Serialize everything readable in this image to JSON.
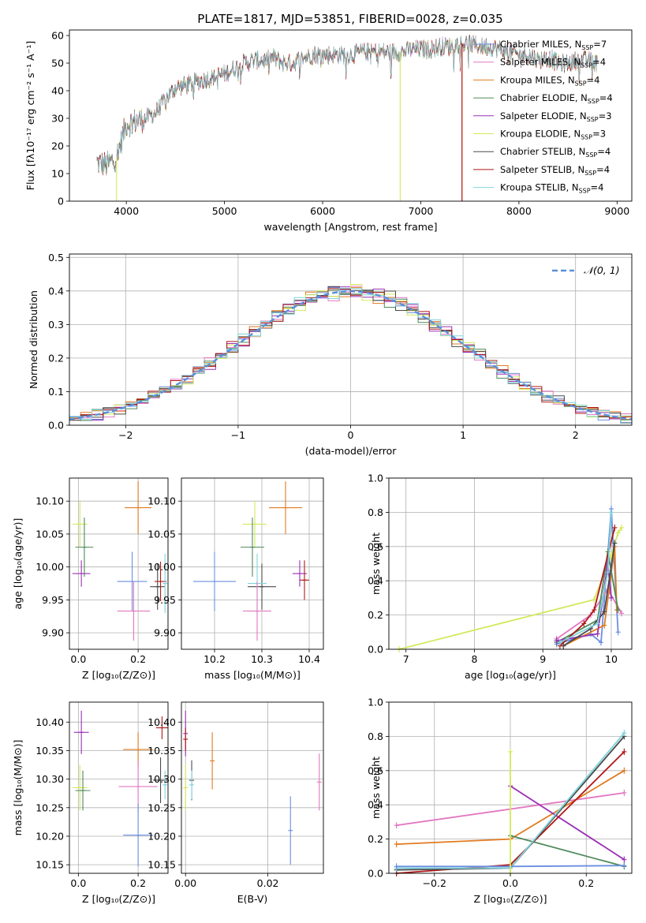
{
  "figure": {
    "title": "PLATE=1817, MJD=53851, FIBERID=0028, z=0.035"
  },
  "colors": {
    "Chabrier MILES": "#6b8fe0",
    "Salpeter MILES": "#e377c2",
    "Kroupa MILES": "#e07b20",
    "Chabrier ELODIE": "#4f8a5b",
    "Salpeter ELODIE": "#9b30b5",
    "Kroupa ELODIE": "#d4e85a",
    "Chabrier STELIB": "#4a4a4a",
    "Salpeter STELIB": "#b01818",
    "Kroupa STELIB": "#7fd4dc",
    "normal": "#5b8fd9",
    "grid": "#b0b0b0"
  },
  "chart_data": [
    {
      "id": "spectrum",
      "type": "line",
      "title": "PLATE=1817, MJD=53851, FIBERID=0028, z=0.035",
      "xlabel": "wavelength [Angstrom, rest frame]",
      "ylabel": "Flux [fλ10⁻¹⁷ erg cm⁻² s⁻¹ A⁻¹]",
      "xlim": [
        3420,
        9150
      ],
      "ylim": [
        0,
        62
      ],
      "xticks": [
        4000,
        5000,
        6000,
        7000,
        8000,
        9000
      ],
      "yticks": [
        0,
        10,
        20,
        30,
        40,
        50,
        60
      ],
      "grid": false,
      "legend_position": "top-right",
      "x": [
        3700,
        3800,
        3900,
        3950,
        4000,
        4100,
        4200,
        4300,
        4400,
        4500,
        4600,
        4700,
        4800,
        4900,
        5000,
        5100,
        5200,
        5300,
        5400,
        5500,
        5600,
        5700,
        5800,
        5900,
        6000,
        6100,
        6200,
        6300,
        6400,
        6500,
        6600,
        6700,
        6800,
        6900,
        7000,
        7100,
        7200,
        7300,
        7400,
        7500,
        7600,
        7700,
        7800,
        7900,
        8000,
        8100,
        8200,
        8300,
        8400,
        8500,
        8600,
        8700,
        8800
      ],
      "y": [
        14,
        13,
        16,
        22,
        28,
        29,
        30,
        32,
        37,
        41,
        42,
        43,
        44,
        45,
        46,
        48,
        50,
        51,
        51,
        52,
        50,
        50,
        52,
        53,
        53,
        53,
        53,
        53,
        54,
        54,
        54,
        54,
        54,
        55,
        55,
        55,
        56,
        56,
        57,
        57,
        56,
        56,
        55,
        54,
        53,
        53,
        51,
        52,
        50,
        50,
        51,
        51,
        50
      ],
      "dips": [
        {
          "series": "Kroupa ELODIE",
          "x": 3900,
          "y": 0
        },
        {
          "series": "Kroupa ELODIE",
          "x": 6790,
          "y": 0
        },
        {
          "series": "Kroupa MILES",
          "x": 7420,
          "y": 0
        },
        {
          "series": "Salpeter STELIB",
          "x": 7420,
          "y": 0
        }
      ],
      "series": [
        {
          "name": "Chabrier MILES",
          "label": "Chabrier MILES, N",
          "sub": "SSP",
          "count": "=7"
        },
        {
          "name": "Salpeter MILES",
          "label": "Salpeter MILES, N",
          "sub": "SSP",
          "count": "=4"
        },
        {
          "name": "Kroupa MILES",
          "label": "Kroupa MILES, N",
          "sub": "SSP",
          "count": "=4"
        },
        {
          "name": "Chabrier ELODIE",
          "label": "Chabrier ELODIE, N",
          "sub": "SSP",
          "count": "=4"
        },
        {
          "name": "Salpeter ELODIE",
          "label": "Salpeter ELODIE, N",
          "sub": "SSP",
          "count": "=3"
        },
        {
          "name": "Kroupa ELODIE",
          "label": "Kroupa ELODIE, N",
          "sub": "SSP",
          "count": "=3"
        },
        {
          "name": "Chabrier STELIB",
          "label": "Chabrier STELIB, N",
          "sub": "SSP",
          "count": "=4"
        },
        {
          "name": "Salpeter STELIB",
          "label": "Salpeter STELIB, N",
          "sub": "SSP",
          "count": "=4"
        },
        {
          "name": "Kroupa STELIB",
          "label": "Kroupa STELIB, N",
          "sub": "SSP",
          "count": "=4"
        }
      ]
    },
    {
      "id": "residuals",
      "type": "line",
      "xlabel": "(data-model)/error",
      "ylabel": "Normed distribution",
      "xlim": [
        -2.5,
        2.5
      ],
      "ylim": [
        0,
        0.51
      ],
      "xticks": [
        -2,
        -1,
        0,
        1,
        2
      ],
      "yticks": [
        0.0,
        0.1,
        0.2,
        0.3,
        0.4,
        0.5
      ],
      "grid": true,
      "legend_position": "top-right",
      "legend_label": "𝒩(0, 1)",
      "bin_width": 0.1,
      "bin_start": -2.5,
      "series_jitter": [
        [
          -0.004,
          0.006,
          -0.008,
          0.01,
          0.003,
          -0.006,
          0.012,
          -0.01,
          0.005,
          0.008
        ],
        [
          0.008,
          -0.003,
          0.01,
          -0.012,
          0.006,
          0.015,
          -0.008,
          0.004,
          -0.006,
          0.011
        ],
        [
          -0.006,
          0.012,
          0.004,
          -0.004,
          -0.01,
          0.008,
          0.006,
          -0.012,
          0.01,
          -0.002
        ],
        [
          0.003,
          -0.01,
          0.008,
          0.006,
          -0.008,
          -0.004,
          0.012,
          0.002,
          -0.014,
          0.006
        ],
        [
          0.01,
          0.004,
          -0.012,
          0.008,
          0.012,
          -0.01,
          -0.004,
          0.01,
          0.002,
          -0.008
        ],
        [
          -0.01,
          0.008,
          0.006,
          -0.014,
          0.004,
          0.01,
          -0.012,
          0.006,
          0.008,
          0.002
        ],
        [
          0.006,
          -0.008,
          -0.004,
          0.012,
          -0.012,
          0.004,
          0.008,
          -0.006,
          0.012,
          -0.01
        ],
        [
          -0.002,
          0.01,
          -0.01,
          0.004,
          0.01,
          -0.012,
          0.006,
          0.012,
          -0.004,
          0.008
        ],
        [
          0.012,
          -0.006,
          0.01,
          -0.008,
          0.002,
          0.008,
          -0.01,
          0.004,
          0.006,
          -0.012
        ]
      ]
    },
    {
      "id": "age_vs_Z",
      "type": "scatter",
      "xlabel": "Z [log₁₀(Z/Z⊙)]",
      "ylabel": "age  [log₁₀(age/yr)]",
      "xlim": [
        -0.03,
        0.3
      ],
      "ylim": [
        9.875,
        10.135
      ],
      "xticks": [
        0.0,
        0.2
      ],
      "yticks": [
        9.9,
        9.95,
        10.0,
        10.05,
        10.1
      ],
      "grid": true,
      "points": [
        {
          "series": "Kroupa ELODIE",
          "x": 0.005,
          "y": 10.065,
          "xerr": 0.025,
          "yerr": 0.035
        },
        {
          "series": "Chabrier ELODIE",
          "x": 0.02,
          "y": 10.03,
          "xerr": 0.03,
          "yerr": 0.045
        },
        {
          "series": "Salpeter ELODIE",
          "x": 0.01,
          "y": 9.99,
          "xerr": 0.03,
          "yerr": 0.02
        },
        {
          "series": "Kroupa MILES",
          "x": 0.2,
          "y": 10.09,
          "xerr": 0.045,
          "yerr": 0.04
        },
        {
          "series": "Chabrier MILES",
          "x": 0.18,
          "y": 9.978,
          "xerr": 0.05,
          "yerr": 0.045
        },
        {
          "series": "Salpeter MILES",
          "x": 0.185,
          "y": 9.933,
          "xerr": 0.055,
          "yerr": 0.045
        },
        {
          "series": "Chabrier STELIB",
          "x": 0.265,
          "y": 9.97,
          "xerr": 0.025,
          "yerr": 0.035
        },
        {
          "series": "Salpeter STELIB",
          "x": 0.275,
          "y": 9.978,
          "xerr": 0.02,
          "yerr": 0.03
        },
        {
          "series": "Kroupa STELIB",
          "x": 0.29,
          "y": 9.975,
          "xerr": 0.005,
          "yerr": 0.045
        }
      ]
    },
    {
      "id": "age_vs_mass",
      "type": "scatter",
      "xlabel": "mass [log₁₀(M/M⊙)]",
      "ylabel": "",
      "xlim": [
        10.13,
        10.43
      ],
      "ylim": [
        9.875,
        10.135
      ],
      "xticks": [
        10.2,
        10.3,
        10.4
      ],
      "yticks": [
        9.9,
        9.95,
        10.0,
        10.05,
        10.1
      ],
      "grid": true,
      "points": [
        {
          "series": "Chabrier MILES",
          "x": 10.2,
          "y": 9.978,
          "xerr": 0.045,
          "yerr": 0.045
        },
        {
          "series": "Kroupa ELODIE",
          "x": 10.285,
          "y": 10.065,
          "xerr": 0.025,
          "yerr": 0.035
        },
        {
          "series": "Chabrier ELODIE",
          "x": 10.28,
          "y": 10.03,
          "xerr": 0.025,
          "yerr": 0.045
        },
        {
          "series": "Kroupa MILES",
          "x": 10.35,
          "y": 10.09,
          "xerr": 0.035,
          "yerr": 0.04
        },
        {
          "series": "Chabrier STELIB",
          "x": 10.3,
          "y": 9.97,
          "xerr": 0.03,
          "yerr": 0.035
        },
        {
          "series": "Kroupa STELIB",
          "x": 10.29,
          "y": 9.975,
          "xerr": 0.02,
          "yerr": 0.045
        },
        {
          "series": "Salpeter MILES",
          "x": 10.29,
          "y": 9.933,
          "xerr": 0.03,
          "yerr": 0.045
        },
        {
          "series": "Salpeter ELODIE",
          "x": 10.38,
          "y": 9.99,
          "xerr": 0.015,
          "yerr": 0.02
        },
        {
          "series": "Salpeter STELIB",
          "x": 10.39,
          "y": 9.98,
          "xerr": 0.01,
          "yerr": 0.03
        }
      ]
    },
    {
      "id": "massweight_vs_age",
      "type": "line",
      "xlabel": "age  [log₁₀(age/yr)]",
      "ylabel": "mass weight",
      "xlim": [
        6.75,
        10.3
      ],
      "ylim": [
        0,
        1.0
      ],
      "xticks": [
        7,
        8,
        9,
        10
      ],
      "yticks": [
        0.0,
        0.2,
        0.4,
        0.6,
        0.8,
        1.0
      ],
      "grid": true,
      "series": [
        {
          "name": "Kroupa ELODIE",
          "x": [
            6.9,
            9.75,
            10.0,
            10.1,
            10.15
          ],
          "y": [
            0.0,
            0.29,
            0.55,
            0.68,
            0.71
          ]
        },
        {
          "name": "Chabrier MILES",
          "x": [
            9.2,
            9.7,
            9.85,
            10.0,
            10.1
          ],
          "y": [
            0.03,
            0.09,
            0.04,
            0.82,
            0.1
          ]
        },
        {
          "name": "Salpeter MILES",
          "x": [
            9.2,
            9.7,
            9.95,
            10.15
          ],
          "y": [
            0.06,
            0.2,
            0.35,
            0.21
          ]
        },
        {
          "name": "Kroupa MILES",
          "x": [
            9.3,
            9.9,
            10.05,
            10.08
          ],
          "y": [
            0.02,
            0.14,
            0.6,
            0.23
          ]
        },
        {
          "name": "Chabrier ELODIE",
          "x": [
            9.2,
            9.8,
            9.95,
            10.1
          ],
          "y": [
            0.04,
            0.17,
            0.57,
            0.23
          ]
        },
        {
          "name": "Salpeter ELODIE",
          "x": [
            9.2,
            9.8,
            9.95,
            10.0
          ],
          "y": [
            0.05,
            0.09,
            0.5,
            0.3
          ]
        },
        {
          "name": "Chabrier STELIB",
          "x": [
            9.3,
            9.7,
            9.9,
            10.05
          ],
          "y": [
            0.02,
            0.12,
            0.22,
            0.62
          ]
        },
        {
          "name": "Salpeter STELIB",
          "x": [
            9.25,
            9.6,
            9.75,
            10.05
          ],
          "y": [
            0.02,
            0.15,
            0.23,
            0.71
          ]
        },
        {
          "name": "Kroupa STELIB",
          "x": [
            9.25,
            9.8,
            9.95,
            10.0
          ],
          "y": [
            0.04,
            0.15,
            0.45,
            0.8
          ]
        }
      ]
    },
    {
      "id": "mass_vs_Z",
      "type": "scatter",
      "xlabel": "Z [log₁₀(Z/Z⊙)]",
      "ylabel": "mass [log₁₀(M/M⊙)]",
      "xlim": [
        -0.03,
        0.3
      ],
      "ylim": [
        10.135,
        10.435
      ],
      "xticks": [
        0.0,
        0.2
      ],
      "yticks": [
        10.15,
        10.2,
        10.25,
        10.3,
        10.35,
        10.4
      ],
      "grid": true,
      "points": [
        {
          "series": "Salpeter ELODIE",
          "x": 0.01,
          "y": 10.382,
          "xerr": 0.025,
          "yerr": 0.038
        },
        {
          "series": "Kroupa ELODIE",
          "x": 0.005,
          "y": 10.285,
          "xerr": 0.025,
          "yerr": 0.04
        },
        {
          "series": "Chabrier ELODIE",
          "x": 0.015,
          "y": 10.28,
          "xerr": 0.025,
          "yerr": 0.035
        },
        {
          "series": "Kroupa MILES",
          "x": 0.2,
          "y": 10.352,
          "xerr": 0.05,
          "yerr": 0.03
        },
        {
          "series": "Salpeter MILES",
          "x": 0.2,
          "y": 10.287,
          "xerr": 0.065,
          "yerr": 0.045
        },
        {
          "series": "Chabrier MILES",
          "x": 0.2,
          "y": 10.202,
          "xerr": 0.05,
          "yerr": 0.055
        },
        {
          "series": "Salpeter STELIB",
          "x": 0.28,
          "y": 10.39,
          "xerr": 0.02,
          "yerr": 0.02
        },
        {
          "series": "Chabrier STELIB",
          "x": 0.275,
          "y": 10.298,
          "xerr": 0.025,
          "yerr": 0.04
        },
        {
          "series": "Kroupa STELIB",
          "x": 0.29,
          "y": 10.29,
          "xerr": 0.005,
          "yerr": 0.025
        }
      ]
    },
    {
      "id": "mass_vs_EBV",
      "type": "scatter",
      "xlabel": "E(B-V)",
      "ylabel": "",
      "xlim": [
        -0.001,
        0.0335
      ],
      "ylim": [
        10.135,
        10.435
      ],
      "xticks": [
        0.0,
        0.02
      ],
      "yticks": [
        10.15,
        10.2,
        10.25,
        10.3,
        10.35,
        10.4
      ],
      "grid": true,
      "points": [
        {
          "series": "Salpeter ELODIE",
          "x": 0.0,
          "y": 10.38,
          "xerr": 0.0,
          "yerr": 0.04
        },
        {
          "series": "Salpeter STELIB",
          "x": 0.0,
          "y": 10.37,
          "xerr": 0.0,
          "yerr": 0.02
        },
        {
          "series": "Kroupa ELODIE",
          "x": 0.0,
          "y": 10.285,
          "xerr": 0.0,
          "yerr": 0.04
        },
        {
          "series": "Chabrier STELIB",
          "x": 0.0015,
          "y": 10.298,
          "xerr": 0.0,
          "yerr": 0.035
        },
        {
          "series": "Kroupa STELIB",
          "x": 0.0015,
          "y": 10.29,
          "xerr": 0.0,
          "yerr": 0.025
        },
        {
          "series": "Kroupa MILES",
          "x": 0.0065,
          "y": 10.332,
          "xerr": 0.0,
          "yerr": 0.05
        },
        {
          "series": "Chabrier MILES",
          "x": 0.0255,
          "y": 10.21,
          "xerr": 0.0,
          "yerr": 0.06
        },
        {
          "series": "Salpeter MILES",
          "x": 0.0325,
          "y": 10.295,
          "xerr": 0.0,
          "yerr": 0.05
        }
      ]
    },
    {
      "id": "massweight_vs_Z",
      "type": "line",
      "xlabel": "Z [log₁₀(Z/Z⊙)]",
      "ylabel": "mass weight",
      "xlim": [
        -0.32,
        0.32
      ],
      "ylim": [
        0,
        1.0
      ],
      "xticks": [
        -0.2,
        0.0,
        0.2
      ],
      "yticks": [
        0.0,
        0.2,
        0.4,
        0.6,
        0.8,
        1.0
      ],
      "grid": true,
      "series": [
        {
          "name": "Salpeter MILES",
          "x": [
            -0.3,
            0.3
          ],
          "y": [
            0.28,
            0.47
          ]
        },
        {
          "name": "Kroupa MILES",
          "x": [
            -0.3,
            0.0,
            0.3
          ],
          "y": [
            0.17,
            0.2,
            0.6
          ]
        },
        {
          "name": "Salpeter ELODIE",
          "x": [
            0.0,
            0.3
          ],
          "y": [
            0.51,
            0.08
          ]
        },
        {
          "name": "Chabrier ELODIE",
          "x": [
            0.0,
            0.3
          ],
          "y": [
            0.22,
            0.04
          ]
        },
        {
          "name": "Salpeter STELIB",
          "x": [
            -0.3,
            0.0,
            0.3
          ],
          "y": [
            0.0,
            0.05,
            0.71
          ]
        },
        {
          "name": "Chabrier STELIB",
          "x": [
            -0.3,
            0.0,
            0.3
          ],
          "y": [
            0.02,
            0.03,
            0.8
          ]
        },
        {
          "name": "Kroupa STELIB",
          "x": [
            -0.3,
            0.0,
            0.3
          ],
          "y": [
            0.03,
            0.03,
            0.82
          ]
        },
        {
          "name": "Chabrier MILES",
          "x": [
            -0.3,
            0.0,
            0.3
          ],
          "y": [
            0.04,
            0.04,
            0.045
          ]
        },
        {
          "name": "Kroupa ELODIE",
          "x": [
            0.0,
            0.0
          ],
          "y": [
            0.0,
            0.71
          ]
        }
      ]
    }
  ]
}
